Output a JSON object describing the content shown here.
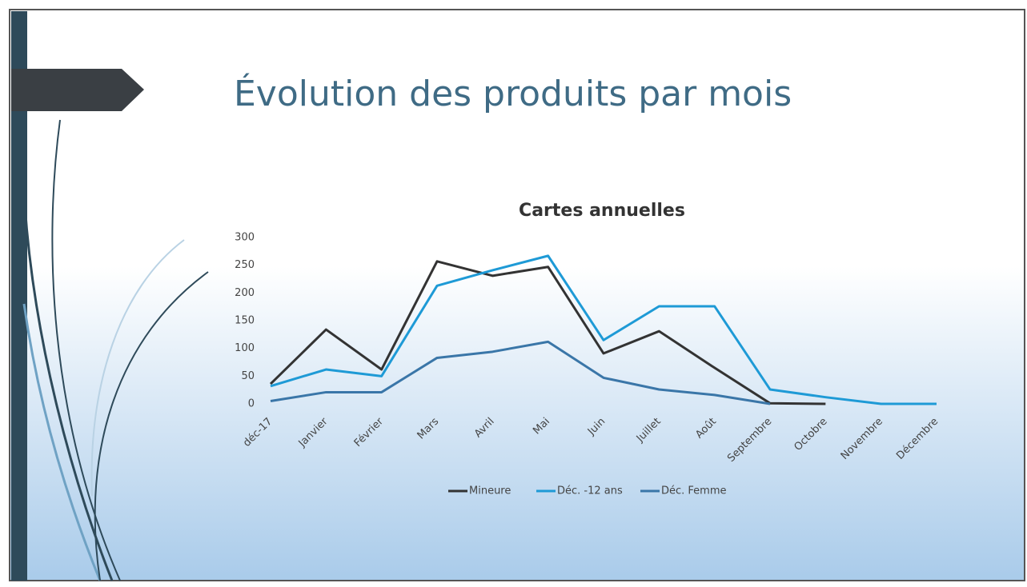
{
  "slide": {
    "title": "Évolution des produits par mois"
  },
  "chart_data": {
    "type": "line",
    "title": "Cartes annuelles",
    "categories": [
      "déc-17",
      "Janvier",
      "Février",
      "Mars",
      "Avril",
      "Mai",
      "Juin",
      "Juillet",
      "Août",
      "Septembre",
      "Octobre",
      "Novembre",
      "Décembre"
    ],
    "series": [
      {
        "name": "Mineure",
        "color": "#333333",
        "values": [
          36,
          134,
          62,
          257,
          231,
          247,
          91,
          131,
          65,
          1,
          0,
          null,
          null
        ]
      },
      {
        "name": "Déc. -12 ans",
        "color": "#1e9ad6",
        "values": [
          32,
          62,
          50,
          213,
          241,
          267,
          115,
          176,
          176,
          26,
          12,
          0,
          0
        ]
      },
      {
        "name": "Déc. Femme",
        "color": "#3a76a8",
        "values": [
          5,
          21,
          21,
          83,
          94,
          112,
          47,
          26,
          16,
          0,
          null,
          null,
          null
        ]
      }
    ],
    "ylim": [
      0,
      300
    ],
    "yticks": [
      0,
      50,
      100,
      150,
      200,
      250,
      300
    ],
    "grid": false,
    "legend": "bottom"
  }
}
